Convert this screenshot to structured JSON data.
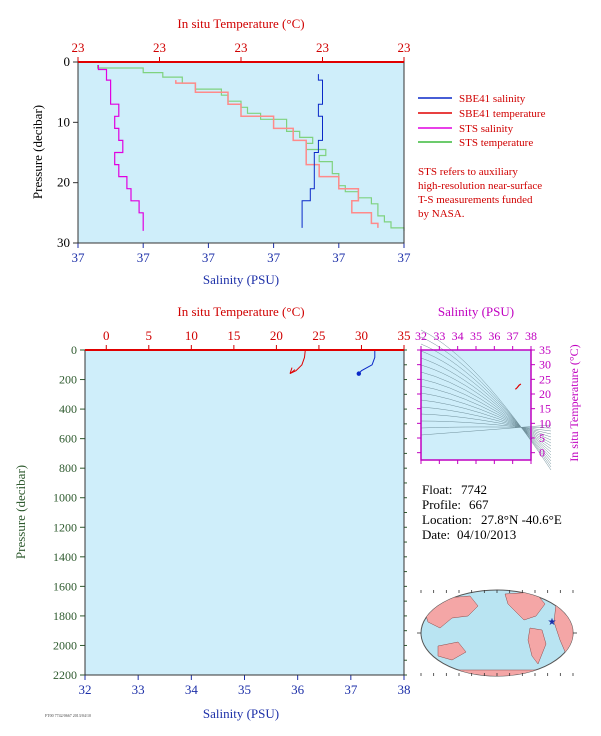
{
  "colors": {
    "panel_bg": "#cfeefa",
    "temperature": "#e00000",
    "salinity": "#0a28c8",
    "sts_salinity": "#e000e0",
    "sts_temperature": "#3cba3c",
    "sts_temp_line": "#7fd27f",
    "sbe41_temp_line": "#ff8a8a",
    "land": "#f4a6a6",
    "ocean": "#b9e4f2"
  },
  "top_panel": {
    "title": "In situ Temperature (°C)",
    "temp_ticks": [
      "23",
      "23",
      "23",
      "23",
      "23"
    ],
    "salinity_label": "Salinity (PSU)",
    "salinity_ticks": [
      "37",
      "37",
      "37",
      "37",
      "37",
      "37"
    ],
    "pressure_label": "Pressure (decibar)",
    "pressure_ticks": [
      "0",
      "10",
      "20",
      "30"
    ]
  },
  "legend": {
    "items": [
      {
        "label": "SBE41 salinity",
        "color": "#0a28c8"
      },
      {
        "label": "SBE41 temperature",
        "color": "#e00000"
      },
      {
        "label": "STS salinity",
        "color": "#e000e0"
      },
      {
        "label": "STS temperature",
        "color": "#3cba3c"
      }
    ],
    "note_lines": [
      "STS refers to auxiliary",
      "high-resolution near-surface",
      "T-S measurements funded",
      "by NASA."
    ]
  },
  "main_panel": {
    "title": "In situ Temperature (°C)",
    "temp_ticks": [
      "0",
      "5",
      "10",
      "15",
      "20",
      "25",
      "30",
      "35"
    ],
    "salinity_label": "Salinity (PSU)",
    "salinity_ticks": [
      "32",
      "33",
      "34",
      "35",
      "36",
      "37",
      "38"
    ],
    "pressure_label": "Pressure (decibar)",
    "pressure_ticks": [
      "0",
      "200",
      "400",
      "600",
      "800",
      "1000",
      "1200",
      "1400",
      "1600",
      "1800",
      "2000",
      "2200"
    ]
  },
  "ts_panel": {
    "salinity_label": "Salinity (PSU)",
    "salinity_ticks": [
      "32",
      "33",
      "34",
      "35",
      "36",
      "37",
      "38"
    ],
    "temp_label": "In situ Temperature (°C)",
    "temp_ticks": [
      "0",
      "5",
      "10",
      "15",
      "20",
      "25",
      "30",
      "35"
    ]
  },
  "float_info": {
    "float_label": "Float:",
    "float_value": "7742",
    "profile_label": "Profile:",
    "profile_value": "667",
    "location_label": "Location:",
    "location_value": "27.8°N  -40.6°E",
    "date_label": "Date:",
    "date_value": "04/10/2013"
  },
  "footer": "FT00 7742/0667 2013/04/10",
  "chart_data": [
    {
      "type": "line",
      "name": "near-surface STS and SBE41 profiles (0-30 dbar)",
      "axes": {
        "pressure_range": [
          0,
          30
        ],
        "pressure_unit": "decibar",
        "pressure_inverted": true,
        "temperature_range": [
          22.95,
          23.45
        ],
        "salinity_range": [
          36.9,
          37.7
        ]
      },
      "series": [
        {
          "name": "STS temperature",
          "axis": "temperature",
          "pressure": [
            0.5,
            1.5,
            2.0,
            3.0,
            4.0,
            5.0,
            6.0,
            7.0,
            8.0,
            9.0,
            10.0,
            11.0,
            12.0,
            13.0,
            14.0,
            15.0,
            16.0,
            17.0,
            18.0,
            19.0,
            20.0,
            21.0,
            22.0,
            23.0,
            24.0,
            25.0,
            26.0,
            27.0,
            28.0
          ],
          "values": [
            22.98,
            23.05,
            23.08,
            23.11,
            23.13,
            23.17,
            23.18,
            23.2,
            23.21,
            23.23,
            23.27,
            23.27,
            23.29,
            23.31,
            23.3,
            23.33,
            23.32,
            23.34,
            23.34,
            23.35,
            23.35,
            23.36,
            23.38,
            23.4,
            23.41,
            23.41,
            23.42,
            23.43,
            23.45
          ]
        },
        {
          "name": "SBE41 temperature",
          "axis": "temperature",
          "pressure": [
            3.0,
            4.0,
            6.0,
            8.0,
            10.0,
            12.0,
            14.0,
            16.0,
            18.0,
            20.0,
            22.0,
            24.0,
            26.0,
            27.5
          ],
          "values": [
            23.1,
            23.13,
            23.18,
            23.2,
            23.25,
            23.28,
            23.3,
            23.3,
            23.32,
            23.35,
            23.38,
            23.37,
            23.4,
            23.41
          ]
        },
        {
          "name": "STS salinity",
          "axis": "salinity",
          "pressure": [
            0.5,
            2.0,
            4.0,
            6.0,
            8.0,
            10.0,
            12.0,
            14.0,
            16.0,
            18.0,
            20.0,
            22.0,
            24.0,
            26.0,
            28.0
          ],
          "values": [
            36.95,
            36.97,
            36.98,
            36.98,
            37.0,
            36.99,
            37.0,
            37.01,
            36.99,
            37.0,
            37.02,
            37.03,
            37.05,
            37.06,
            37.06
          ]
        },
        {
          "name": "SBE41 salinity",
          "axis": "salinity",
          "pressure": [
            2.0,
            4.0,
            6.0,
            8.0,
            10.0,
            12.0,
            14.0,
            16.0,
            18.0,
            20.0,
            22.0,
            24.0,
            26.0,
            27.5
          ],
          "values": [
            37.49,
            37.5,
            37.5,
            37.49,
            37.5,
            37.5,
            37.49,
            37.48,
            37.48,
            37.48,
            37.47,
            37.45,
            37.45,
            37.45
          ]
        }
      ]
    },
    {
      "type": "line",
      "name": "full-depth SBE41 profile",
      "axes": {
        "pressure_range": [
          0,
          2200
        ],
        "pressure_unit": "decibar",
        "pressure_inverted": true,
        "temperature_range": [
          -2.5,
          35
        ],
        "salinity_range": [
          32,
          38
        ]
      },
      "series": [
        {
          "name": "SBE41 temperature",
          "axis": "temperature",
          "pressure": [
            0,
            50,
            100,
            140,
            160
          ],
          "values": [
            23.4,
            23.3,
            23.0,
            22.3,
            21.6
          ]
        },
        {
          "name": "SBE41 salinity",
          "axis": "salinity",
          "pressure": [
            0,
            50,
            100,
            140,
            160
          ],
          "values": [
            37.45,
            37.45,
            37.4,
            37.2,
            37.15
          ]
        }
      ]
    },
    {
      "type": "line",
      "name": "T-S diagram",
      "axes": {
        "x": "salinity",
        "x_range": [
          32,
          38
        ],
        "y": "temperature",
        "y_range": [
          -2.5,
          35
        ]
      },
      "series": [
        {
          "name": "SBE41 profile",
          "x": [
            37.15,
            37.25,
            37.35,
            37.45
          ],
          "y": [
            21.6,
            22.2,
            23.0,
            23.4
          ]
        }
      ]
    }
  ]
}
